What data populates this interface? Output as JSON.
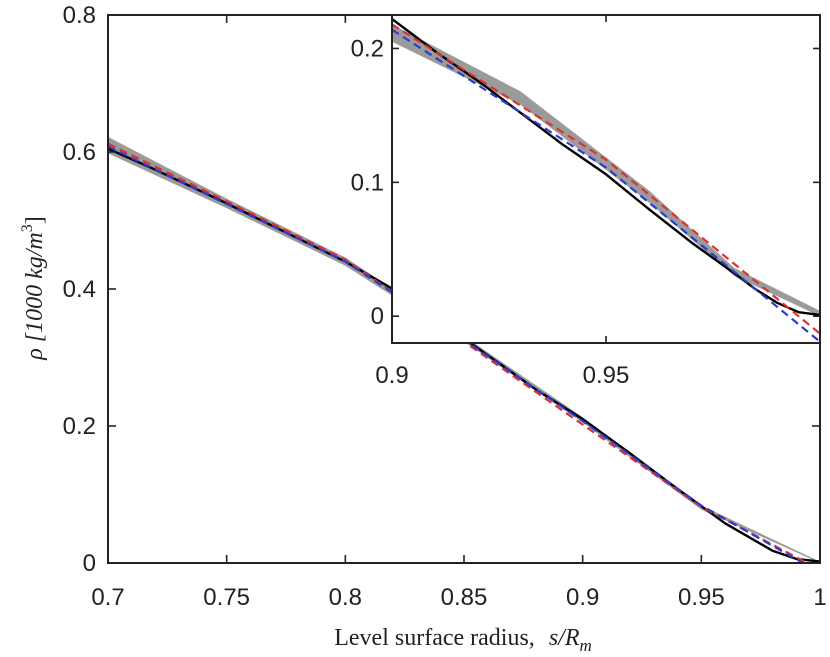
{
  "chart_data": [
    {
      "type": "line",
      "role": "main",
      "xlabel": "Level surface radius, s/R_m",
      "xlabel_text": "Level surface radius,",
      "xlabel_math": "s/R",
      "xlabel_sub": "m",
      "ylabel_text": "ρ [1000 kg/m",
      "ylabel_sup": "3",
      "ylabel_close": "]",
      "xlim": [
        0.7,
        1.0
      ],
      "ylim": [
        0,
        0.8
      ],
      "xticks": [
        0.7,
        0.75,
        0.8,
        0.85,
        0.9,
        0.95,
        1.0
      ],
      "xtick_labels": [
        "0.7",
        "0.75",
        "0.8",
        "0.85",
        "0.9",
        "0.95",
        "1"
      ],
      "yticks": [
        0,
        0.2,
        0.4,
        0.6,
        0.8
      ],
      "ytick_labels": [
        "0",
        "0.2",
        "0.4",
        "0.6",
        "0.8"
      ],
      "grid": false,
      "series": [
        {
          "style": "band",
          "color": "#8a8a8a",
          "x": [
            0.7,
            0.75,
            0.8,
            0.85,
            0.9,
            0.95,
            1.0
          ],
          "y_low": [
            0.598,
            0.518,
            0.434,
            0.323,
            0.205,
            0.078,
            0.0
          ],
          "y_high": [
            0.622,
            0.532,
            0.446,
            0.331,
            0.213,
            0.084,
            0.002
          ]
        },
        {
          "style": "solid",
          "color": "#000000",
          "x": [
            0.7,
            0.72,
            0.75,
            0.78,
            0.8,
            0.82,
            0.85,
            0.88,
            0.9,
            0.92,
            0.94,
            0.96,
            0.98,
            0.99,
            1.0
          ],
          "y": [
            0.605,
            0.574,
            0.525,
            0.474,
            0.44,
            0.4,
            0.328,
            0.254,
            0.21,
            0.16,
            0.108,
            0.058,
            0.018,
            0.006,
            0.002
          ]
        },
        {
          "style": "dashed",
          "color": "#e03030",
          "x": [
            0.7,
            0.75,
            0.8,
            0.85,
            0.9,
            0.95,
            1.0
          ],
          "y": [
            0.612,
            0.528,
            0.443,
            0.323,
            0.202,
            0.082,
            -0.01
          ]
        },
        {
          "style": "dashed",
          "color": "#2a3cd8",
          "x": [
            0.7,
            0.75,
            0.8,
            0.85,
            0.9,
            0.95,
            1.0
          ],
          "y": [
            0.608,
            0.524,
            0.44,
            0.326,
            0.207,
            0.084,
            -0.014
          ]
        }
      ]
    },
    {
      "type": "line",
      "role": "inset",
      "xlim": [
        0.9,
        1.0
      ],
      "ylim": [
        -0.02,
        0.225
      ],
      "xticks": [
        0.9,
        0.95
      ],
      "xtick_labels": [
        "0.9",
        "0.95"
      ],
      "yticks": [
        0,
        0.1,
        0.2
      ],
      "ytick_labels": [
        "0",
        "0.1",
        "0.2"
      ],
      "grid": false,
      "series": [
        {
          "style": "band",
          "color": "#8a8a8a",
          "x": [
            0.9,
            0.93,
            0.96,
            0.98,
            1.0
          ],
          "y_low": [
            0.205,
            0.158,
            0.085,
            0.03,
            0.0
          ],
          "y_high": [
            0.218,
            0.168,
            0.094,
            0.036,
            0.004
          ]
        },
        {
          "style": "solid",
          "color": "#000000",
          "x": [
            0.9,
            0.91,
            0.92,
            0.93,
            0.94,
            0.95,
            0.96,
            0.97,
            0.98,
            0.985,
            0.99,
            0.995,
            1.0
          ],
          "y": [
            0.222,
            0.198,
            0.176,
            0.152,
            0.128,
            0.106,
            0.08,
            0.055,
            0.032,
            0.02,
            0.01,
            0.003,
            0.001
          ]
        },
        {
          "style": "dashed",
          "color": "#e03030",
          "x": [
            0.9,
            0.95,
            1.0
          ],
          "y": [
            0.218,
            0.117,
            -0.013
          ]
        },
        {
          "style": "dashed",
          "color": "#2a3cd8",
          "x": [
            0.9,
            0.95,
            1.0
          ],
          "y": [
            0.214,
            0.111,
            -0.019
          ]
        }
      ]
    }
  ]
}
